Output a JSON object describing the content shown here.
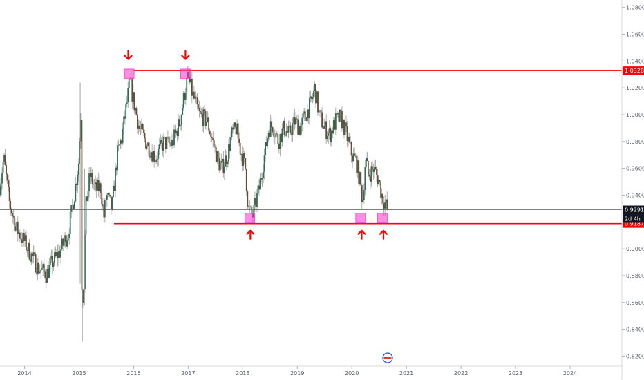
{
  "chart_data": {
    "type": "candlestick",
    "title": "",
    "xlabel": "",
    "ylabel": "",
    "x_range": [
      2013.55,
      2024.95
    ],
    "ylim": [
      0.8125,
      1.0855
    ],
    "x_ticks": [
      "2014",
      "2015",
      "2016",
      "2017",
      "2018",
      "2019",
      "2020",
      "2021",
      "2022",
      "2023",
      "2024"
    ],
    "y_ticks": [
      "1.08000",
      "1.06000",
      "1.04000",
      "1.02000",
      "1.00000",
      "0.98000",
      "0.96000",
      "0.94000",
      "0.92000",
      "0.90000",
      "0.88000",
      "0.86000",
      "0.84000",
      "0.82000"
    ],
    "colors": {
      "up": "#2f6e57",
      "down": "#6b4a36",
      "level": "#ff0000",
      "marker": "#ff33cc",
      "arrow": "#ff0000",
      "price_line": "#555555",
      "wick": "#9a9a9a"
    },
    "price_anchors": [
      [
        2013.55,
        0.947
      ],
      [
        2013.62,
        0.968
      ],
      [
        2013.72,
        0.935
      ],
      [
        2013.85,
        0.915
      ],
      [
        2014.0,
        0.905
      ],
      [
        2014.15,
        0.893
      ],
      [
        2014.25,
        0.886
      ],
      [
        2014.4,
        0.881
      ],
      [
        2014.5,
        0.889
      ],
      [
        2014.65,
        0.898
      ],
      [
        2014.8,
        0.912
      ],
      [
        2014.92,
        0.942
      ],
      [
        2015.0,
        0.967
      ],
      [
        2015.03,
        1.005
      ],
      [
        2015.05,
        0.874
      ],
      [
        2015.08,
        0.86
      ],
      [
        2015.12,
        0.93
      ],
      [
        2015.2,
        0.955
      ],
      [
        2015.3,
        0.944
      ],
      [
        2015.4,
        0.946
      ],
      [
        2015.45,
        0.923
      ],
      [
        2015.5,
        0.94
      ],
      [
        2015.6,
        0.93
      ],
      [
        2015.7,
        0.97
      ],
      [
        2015.78,
        0.982
      ],
      [
        2015.88,
        1.01
      ],
      [
        2015.93,
        1.025
      ],
      [
        2016.0,
        1.01
      ],
      [
        2016.1,
        0.99
      ],
      [
        2016.25,
        0.978
      ],
      [
        2016.4,
        0.968
      ],
      [
        2016.55,
        0.979
      ],
      [
        2016.7,
        0.978
      ],
      [
        2016.85,
        0.995
      ],
      [
        2016.95,
        1.02
      ],
      [
        2017.0,
        1.028
      ],
      [
        2017.08,
        1.015
      ],
      [
        2017.2,
        1.0
      ],
      [
        2017.35,
        0.995
      ],
      [
        2017.45,
        0.98
      ],
      [
        2017.55,
        0.965
      ],
      [
        2017.62,
        0.96
      ],
      [
        2017.72,
        0.97
      ],
      [
        2017.8,
        0.985
      ],
      [
        2017.88,
        0.99
      ],
      [
        2017.95,
        0.975
      ],
      [
        2018.05,
        0.96
      ],
      [
        2018.1,
        0.93
      ],
      [
        2018.18,
        0.924
      ],
      [
        2018.3,
        0.945
      ],
      [
        2018.4,
        0.97
      ],
      [
        2018.48,
        0.99
      ],
      [
        2018.55,
        0.992
      ],
      [
        2018.65,
        0.98
      ],
      [
        2018.75,
        0.99
      ],
      [
        2018.85,
        0.985
      ],
      [
        2018.95,
        0.995
      ],
      [
        2019.05,
        0.99
      ],
      [
        2019.15,
        1.0
      ],
      [
        2019.25,
        1.008
      ],
      [
        2019.32,
        1.02
      ],
      [
        2019.4,
        1.0
      ],
      [
        2019.5,
        0.99
      ],
      [
        2019.6,
        0.985
      ],
      [
        2019.7,
        0.995
      ],
      [
        2019.8,
        0.998
      ],
      [
        2019.9,
        0.985
      ],
      [
        2020.0,
        0.97
      ],
      [
        2020.08,
        0.965
      ],
      [
        2020.15,
        0.95
      ],
      [
        2020.2,
        0.935
      ],
      [
        2020.25,
        0.968
      ],
      [
        2020.3,
        0.955
      ],
      [
        2020.4,
        0.96
      ],
      [
        2020.5,
        0.95
      ],
      [
        2020.55,
        0.94
      ],
      [
        2020.6,
        0.935
      ],
      [
        2020.65,
        0.9292
      ]
    ],
    "series": [
      {
        "name": "",
        "type": "hline",
        "value": 1.03289,
        "x_start": 2016.0,
        "x_end": 2024.95
      },
      {
        "name": "",
        "type": "hline",
        "value": 0.91879,
        "x_start": 2015.64,
        "x_end": 2024.95
      }
    ],
    "current_price": {
      "value": 0.92916,
      "label": "0.92916",
      "countdown": "2d 4h"
    },
    "level_labels": [
      {
        "value": 1.03289,
        "label": "1.03289"
      },
      {
        "value": 0.91879,
        "label": "0.91879"
      }
    ],
    "highlight_boxes": [
      {
        "x": 2015.92,
        "y": 1.0304
      },
      {
        "x": 2016.95,
        "y": 1.0304
      },
      {
        "x": 2018.13,
        "y": 0.9229
      },
      {
        "x": 2020.16,
        "y": 0.9229
      },
      {
        "x": 2020.56,
        "y": 0.9229
      }
    ],
    "arrows": [
      {
        "x": 2015.9,
        "y": 1.0445,
        "direction": "down"
      },
      {
        "x": 2016.95,
        "y": 1.0445,
        "direction": "down"
      },
      {
        "x": 2018.14,
        "y": 0.9105,
        "direction": "up"
      },
      {
        "x": 2020.18,
        "y": 0.9105,
        "direction": "up"
      },
      {
        "x": 2020.58,
        "y": 0.9105,
        "direction": "up"
      }
    ],
    "grid": false,
    "legend": "none"
  }
}
